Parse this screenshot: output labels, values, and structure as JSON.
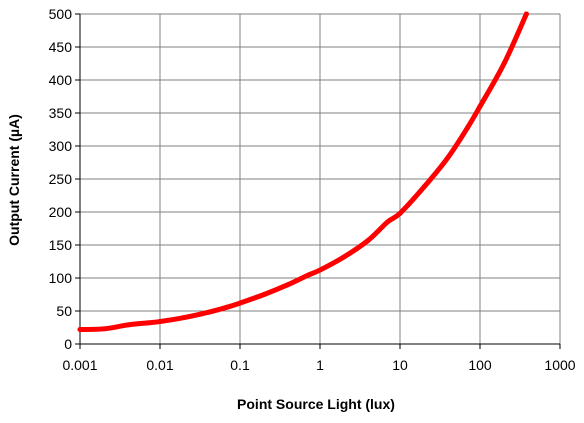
{
  "chart_data": {
    "type": "line",
    "title": "",
    "xlabel": "Point Source Light (lux)",
    "ylabel": "Output Current (µA)",
    "x_scale": "log",
    "xlim": [
      0.001,
      1000
    ],
    "ylim": [
      0,
      500
    ],
    "grid": true,
    "legend": "none",
    "x_ticks": [
      {
        "value": 0.001,
        "label": "0.001"
      },
      {
        "value": 0.01,
        "label": "0.01"
      },
      {
        "value": 0.1,
        "label": "0.1"
      },
      {
        "value": 1,
        "label": "1"
      },
      {
        "value": 10,
        "label": "10"
      },
      {
        "value": 100,
        "label": "100"
      },
      {
        "value": 1000,
        "label": "1000"
      }
    ],
    "y_ticks": [
      {
        "value": 0,
        "label": "0"
      },
      {
        "value": 50,
        "label": "50"
      },
      {
        "value": 100,
        "label": "100"
      },
      {
        "value": 150,
        "label": "150"
      },
      {
        "value": 200,
        "label": "200"
      },
      {
        "value": 250,
        "label": "250"
      },
      {
        "value": 300,
        "label": "300"
      },
      {
        "value": 350,
        "label": "350"
      },
      {
        "value": 400,
        "label": "400"
      },
      {
        "value": 450,
        "label": "450"
      },
      {
        "value": 500,
        "label": "500"
      }
    ],
    "series": [
      {
        "color": "#ff0000",
        "points": [
          {
            "x": 0.001,
            "y": 22
          },
          {
            "x": 0.002,
            "y": 23
          },
          {
            "x": 0.004,
            "y": 29
          },
          {
            "x": 0.007,
            "y": 32
          },
          {
            "x": 0.01,
            "y": 34
          },
          {
            "x": 0.02,
            "y": 40
          },
          {
            "x": 0.04,
            "y": 48
          },
          {
            "x": 0.07,
            "y": 56
          },
          {
            "x": 0.1,
            "y": 62
          },
          {
            "x": 0.2,
            "y": 75
          },
          {
            "x": 0.4,
            "y": 90
          },
          {
            "x": 0.7,
            "y": 104
          },
          {
            "x": 1,
            "y": 112
          },
          {
            "x": 2,
            "y": 132
          },
          {
            "x": 4,
            "y": 157
          },
          {
            "x": 7,
            "y": 185
          },
          {
            "x": 10,
            "y": 198
          },
          {
            "x": 20,
            "y": 238
          },
          {
            "x": 40,
            "y": 283
          },
          {
            "x": 70,
            "y": 328
          },
          {
            "x": 100,
            "y": 360
          },
          {
            "x": 200,
            "y": 425
          },
          {
            "x": 380,
            "y": 500
          }
        ]
      }
    ]
  }
}
